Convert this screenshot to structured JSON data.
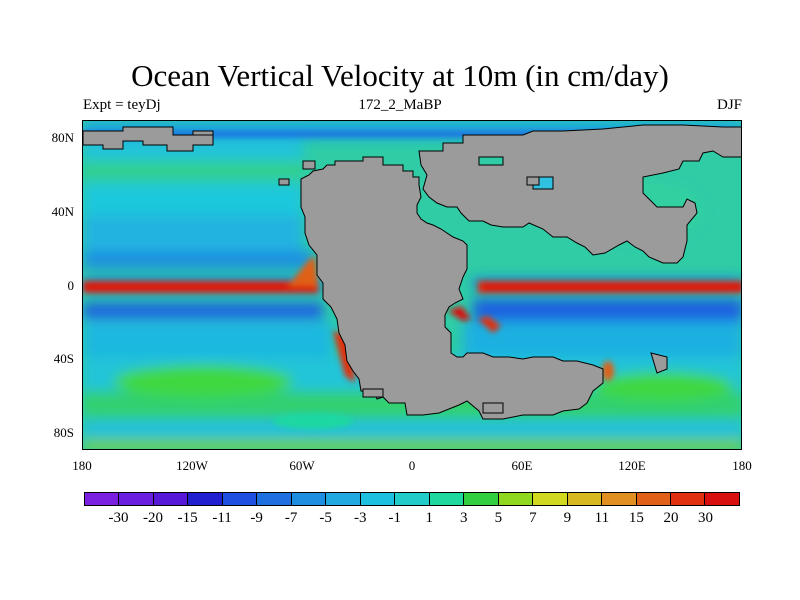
{
  "title": "Ocean Vertical Velocity at 10m (in cm/day)",
  "subtitle_left": "Expt = teyDj",
  "subtitle_center": "172_2_MaBP",
  "subtitle_right": "DJF",
  "y_ticks": [
    "80N",
    "40N",
    "0",
    "40S",
    "80S"
  ],
  "x_ticks": [
    "180",
    "120W",
    "60W",
    "0",
    "60E",
    "120E",
    "180"
  ],
  "colors": {
    "land": "#9a9a9a",
    "background_ocean": "#30c8a0",
    "colorbar": [
      "#7b1fe0",
      "#6a1ee0",
      "#5818d8",
      "#2020d0",
      "#1f4fe0",
      "#1e70e0",
      "#1e8fe0",
      "#20a8e0",
      "#1ec0e0",
      "#20cdc8",
      "#1fd8a0",
      "#30d040",
      "#90d820",
      "#d0d820",
      "#d8b820",
      "#e09020",
      "#e06018",
      "#e03010",
      "#d81010"
    ]
  },
  "colorbar_labels": [
    "-30",
    "-20",
    "-15",
    "-11",
    "-9",
    "-7",
    "-5",
    "-3",
    "-1",
    "1",
    "3",
    "5",
    "7",
    "9",
    "11",
    "15",
    "20",
    "30"
  ]
}
